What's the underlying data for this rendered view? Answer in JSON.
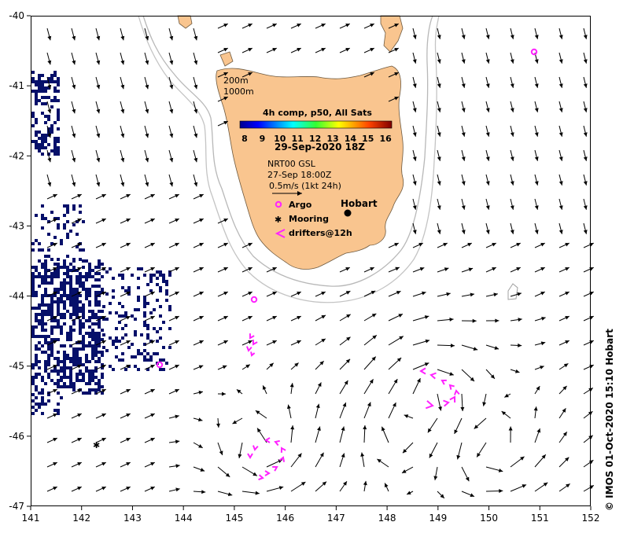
{
  "map": {
    "x_ticks": [
      "141",
      "142",
      "143",
      "144",
      "145",
      "146",
      "147",
      "148",
      "149",
      "150",
      "151",
      "152"
    ],
    "y_ticks": [
      "-40",
      "-41",
      "-42",
      "-43",
      "-44",
      "-45",
      "-46",
      "-47"
    ],
    "extent": {
      "lon": [
        141,
        152
      ],
      "lat": [
        -47,
        -40
      ]
    },
    "colors": {
      "land": "#f9c58f",
      "isobath": "#b4b4b4",
      "gaps": "#06106a",
      "drifter": "#ff22ff",
      "argo": "#ff22ff"
    }
  },
  "legend": {
    "isobath_200": "200m",
    "isobath_1000": "1000m",
    "composite": "4h comp, p50, All Sats",
    "colorbar_ticks": [
      "8",
      "9",
      "10",
      "11",
      "12",
      "13",
      "14",
      "15",
      "16"
    ],
    "date": "29-Sep-2020 18Z",
    "current_source": "NRT00 GSL",
    "current_date": "27-Sep 18:00Z",
    "scale": "0.5m/s (1kt 24h)",
    "argo_label": "Argo",
    "mooring_label": "Mooring",
    "drifters_label": "drifters@12h"
  },
  "places": {
    "hobart": "Hobart"
  },
  "credit": "© IMOS 01-Oct-2020 15:10 Hobart"
}
